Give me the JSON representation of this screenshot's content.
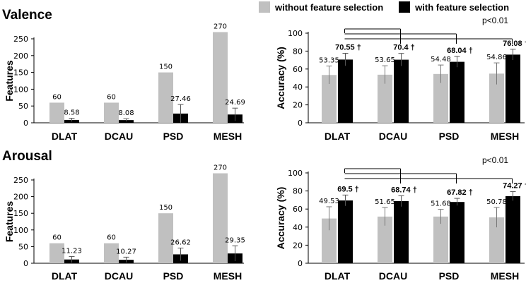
{
  "legend": {
    "without_label": "without feature selection",
    "with_label": "with feature selection",
    "without_color": "#c0c0c0",
    "with_color": "#000000"
  },
  "titles": {
    "valence": "Valence",
    "arousal": "Arousal"
  },
  "chart_data": [
    {
      "id": "valence_features",
      "type": "bar",
      "ylabel": "Features",
      "categories": [
        "DLAT",
        "DCAU",
        "PSD",
        "MESH"
      ],
      "ylim": [
        0,
        270
      ],
      "yticks": [
        0,
        50,
        100,
        150,
        200,
        250
      ],
      "series": [
        {
          "name": "without feature selection",
          "values": [
            60,
            60,
            150,
            270
          ],
          "labels": [
            "60",
            "60",
            "150",
            "270"
          ],
          "err": [
            0,
            0,
            0,
            0
          ]
        },
        {
          "name": "with feature selection",
          "values": [
            8.58,
            8.08,
            27.46,
            24.69
          ],
          "labels": [
            "8.58",
            "8.08",
            "27.46",
            "24.69"
          ],
          "err": [
            5,
            4,
            27,
            19
          ]
        }
      ]
    },
    {
      "id": "valence_accuracy",
      "type": "bar",
      "ylabel": "Accuracy (%)",
      "categories": [
        "DLAT",
        "DCAU",
        "PSD",
        "MESH"
      ],
      "ylim": [
        0,
        100
      ],
      "yticks": [
        0,
        20,
        40,
        60,
        80,
        100
      ],
      "series": [
        {
          "name": "without feature selection",
          "values": [
            53.35,
            53.65,
            54.48,
            54.86
          ],
          "labels": [
            "53.35",
            "53.65",
            "54.48",
            "54.86"
          ],
          "err": [
            10,
            10,
            10,
            12
          ]
        },
        {
          "name": "with feature selection",
          "values": [
            70.55,
            70.4,
            68.04,
            76.08
          ],
          "labels": [
            "70.55 †",
            "70.4 †",
            "68.04 †",
            "76.08 †"
          ],
          "err": [
            7,
            7,
            6,
            6
          ]
        }
      ],
      "significance": "p<0.01"
    },
    {
      "id": "arousal_features",
      "type": "bar",
      "ylabel": "Features",
      "categories": [
        "DLAT",
        "DCAU",
        "PSD",
        "MESH"
      ],
      "ylim": [
        0,
        270
      ],
      "yticks": [
        0,
        50,
        100,
        150,
        200,
        250
      ],
      "series": [
        {
          "name": "without feature selection",
          "values": [
            60,
            60,
            150,
            270
          ],
          "labels": [
            "60",
            "60",
            "150",
            "270"
          ],
          "err": [
            0,
            0,
            0,
            0
          ]
        },
        {
          "name": "with feature selection",
          "values": [
            11.23,
            10.27,
            26.62,
            29.35
          ],
          "labels": [
            "11.23",
            "10.27",
            "26.62",
            "29.35"
          ],
          "err": [
            9,
            8,
            19,
            23
          ]
        }
      ]
    },
    {
      "id": "arousal_accuracy",
      "type": "bar",
      "ylabel": "Accuracy (%)",
      "categories": [
        "DLAT",
        "DCAU",
        "PSD",
        "MESH"
      ],
      "ylim": [
        0,
        100
      ],
      "yticks": [
        0,
        20,
        40,
        60,
        80,
        100
      ],
      "series": [
        {
          "name": "without feature selection",
          "values": [
            49.53,
            51.65,
            51.68,
            50.78
          ],
          "labels": [
            "49.53",
            "51.65",
            "51.68",
            "50.78"
          ],
          "err": [
            13,
            10,
            8,
            11
          ]
        },
        {
          "name": "with feature selection",
          "values": [
            69.5,
            68.74,
            67.82,
            74.27
          ],
          "labels": [
            "69.5 †",
            "68.74 †",
            "67.82 †",
            "74.27 †"
          ],
          "err": [
            6,
            6,
            4,
            5
          ]
        }
      ],
      "significance": "p<0.01"
    }
  ]
}
